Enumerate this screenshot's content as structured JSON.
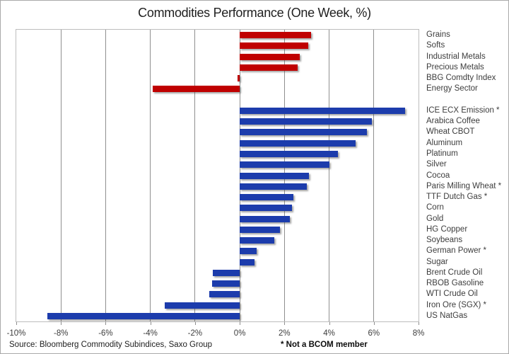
{
  "chart_data": {
    "type": "bar",
    "orientation": "horizontal",
    "title": "Commodities Performance (One Week, %)",
    "xlabel": "",
    "ylabel": "",
    "xlim": [
      -10,
      8
    ],
    "x_ticks": [
      "-10%",
      "-8%",
      "-6%",
      "-4%",
      "-2%",
      "0%",
      "2%",
      "4%",
      "6%",
      "8%"
    ],
    "x_tick_values": [
      -10,
      -8,
      -6,
      -4,
      -2,
      0,
      2,
      4,
      6,
      8
    ],
    "grid": "vertical",
    "legend": "none",
    "unit": "%",
    "groups": [
      {
        "name": "sector-indices",
        "color": "#c00000",
        "items": [
          {
            "label": "Grains",
            "value": 3.2
          },
          {
            "label": "Softs",
            "value": 3.05
          },
          {
            "label": "Industrial Metals",
            "value": 2.7
          },
          {
            "label": "Precious Metals",
            "value": 2.6
          },
          {
            "label": "BBG Comdty Index",
            "value": -0.1
          },
          {
            "label": "Energy Sector",
            "value": -3.9
          }
        ]
      },
      {
        "name": "single-commodities",
        "color": "#1c3cac",
        "items": [
          {
            "label": "ICE ECX Emission *",
            "value": 7.4
          },
          {
            "label": "Arabica Coffee",
            "value": 5.9
          },
          {
            "label": "Wheat CBOT",
            "value": 5.7
          },
          {
            "label": "Aluminum",
            "value": 5.2
          },
          {
            "label": "Platinum",
            "value": 4.4
          },
          {
            "label": "Silver",
            "value": 4.0
          },
          {
            "label": "Cocoa",
            "value": 3.1
          },
          {
            "label": "Paris Milling Wheat *",
            "value": 3.0
          },
          {
            "label": "TTF Dutch Gas *",
            "value": 2.4
          },
          {
            "label": "Corn",
            "value": 2.35
          },
          {
            "label": "Gold",
            "value": 2.25
          },
          {
            "label": "HG Copper",
            "value": 1.8
          },
          {
            "label": "Soybeans",
            "value": 1.55
          },
          {
            "label": "German Power *",
            "value": 0.75
          },
          {
            "label": "Sugar",
            "value": 0.65
          },
          {
            "label": "Brent Crude Oil",
            "value": -1.2
          },
          {
            "label": "RBOB Gasoline",
            "value": -1.25
          },
          {
            "label": "WTI Crude Oil",
            "value": -1.35
          },
          {
            "label": "Iron Ore (SGX) *",
            "value": -3.35
          },
          {
            "label": "US NatGas",
            "value": -8.6
          }
        ]
      }
    ]
  },
  "footer": {
    "source": "Source: Bloomberg Commodity Subindices, Saxo Group",
    "note": "* Not a BCOM member"
  },
  "colors": {
    "negative_positive_sector": "#c00000",
    "commodity_bars": "#1c3cac",
    "gridline": "#8f8f8f",
    "text": "#3d3d3d"
  }
}
